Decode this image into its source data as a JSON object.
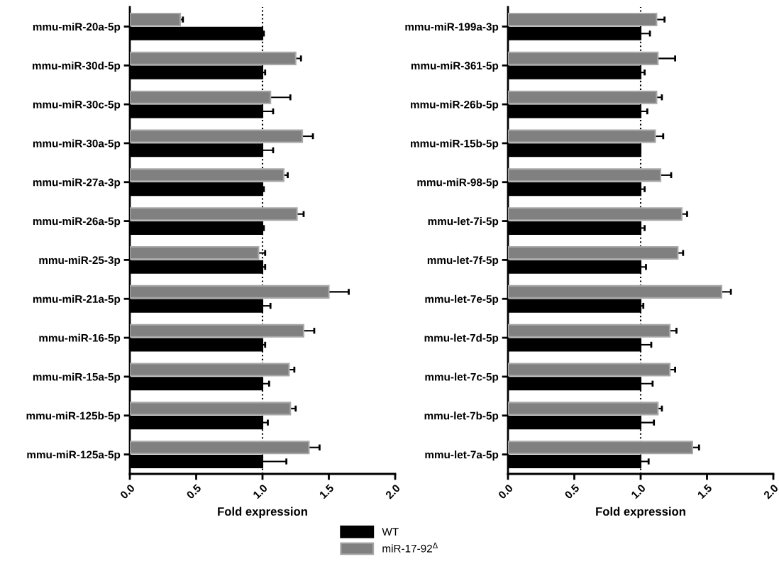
{
  "chart_data": [
    {
      "type": "bar",
      "orientation": "horizontal",
      "xlabel": "Fold expression",
      "categories": [
        "mmu-miR-20a-5p",
        "mmu-miR-30d-5p",
        "mmu-miR-30c-5p",
        "mmu-miR-30a-5p",
        "mmu-miR-27a-3p",
        "mmu-miR-26a-5p",
        "mmu-miR-25-3p",
        "mmu-miR-21a-5p",
        "mmu-miR-16-5p",
        "mmu-miR-15a-5p",
        "mmu-miR-125b-5p",
        "mmu-miR-125a-5p"
      ],
      "series": [
        {
          "name": "WT",
          "color": "#000000",
          "values": [
            1.0,
            1.0,
            1.0,
            1.0,
            1.0,
            1.0,
            1.0,
            1.0,
            1.0,
            1.0,
            1.0,
            1.0
          ],
          "errors": [
            0.01,
            0.02,
            0.08,
            0.08,
            0.01,
            0.01,
            0.02,
            0.06,
            0.02,
            0.05,
            0.04,
            0.18
          ]
        },
        {
          "name": "miR-17-92$^{Δ}$",
          "color": "#808080",
          "values": [
            0.38,
            1.25,
            1.06,
            1.3,
            1.16,
            1.26,
            0.97,
            1.5,
            1.31,
            1.2,
            1.21,
            1.35
          ],
          "errors": [
            0.02,
            0.04,
            0.15,
            0.08,
            0.03,
            0.05,
            0.05,
            0.15,
            0.08,
            0.04,
            0.04,
            0.08
          ]
        }
      ],
      "xlim": [
        0,
        2.0
      ],
      "xticks": [
        {
          "value": 0,
          "label": "0.0"
        },
        {
          "value": 0.5,
          "label": "0.5"
        },
        {
          "value": 1,
          "label": "1.0"
        },
        {
          "value": 1.5,
          "label": "1.5"
        },
        {
          "value": 2,
          "label": "2.0"
        }
      ],
      "ref_lines": [
        {
          "axis": "x",
          "value": 1.0,
          "line_style": "dotted",
          "color": "#000000"
        }
      ],
      "grid": false,
      "legend": "bottom"
    },
    {
      "type": "bar",
      "orientation": "horizontal",
      "xlabel": "Fold expression",
      "categories": [
        "mmu-miR-199a-3p",
        "mmu-miR-361-5p",
        "mmu-miR-26b-5p",
        "mmu-miR-15b-5p",
        "mmu-miR-98-5p",
        "mmu-let-7i-5p",
        "mmu-let-7f-5p",
        "mmu-let-7e-5p",
        "mmu-let-7d-5p",
        "mmu-let-7c-5p",
        "mmu-let-7b-5p",
        "mmu-let-7a-5p"
      ],
      "series": [
        {
          "color": "#000000",
          "values": [
            1.0,
            1.0,
            1.0,
            1.0,
            1.0,
            1.0,
            1.0,
            1.0,
            1.0,
            1.0,
            1.0,
            1.0
          ],
          "errors": [
            0.07,
            0.03,
            0.05,
            null,
            0.03,
            0.03,
            0.04,
            0.02,
            0.08,
            0.09,
            0.1,
            0.06
          ]
        },
        {
          "color": "#808080",
          "values": [
            1.12,
            1.13,
            1.12,
            1.11,
            1.15,
            1.31,
            1.28,
            1.61,
            1.22,
            1.22,
            1.13,
            1.39
          ],
          "errors": [
            0.06,
            0.13,
            0.04,
            0.06,
            0.08,
            0.04,
            0.04,
            0.07,
            0.05,
            0.04,
            0.03,
            0.05
          ]
        }
      ],
      "xlim": [
        0,
        2.0
      ],
      "xticks": [
        {
          "value": 0,
          "label": "0.0"
        },
        {
          "value": 0.5,
          "label": "0.5"
        },
        {
          "value": 1,
          "label": "1.0"
        },
        {
          "value": 1.5,
          "label": "1.5"
        },
        {
          "value": 2,
          "label": "2.0"
        }
      ],
      "ref_lines": [
        {
          "axis": "x",
          "value": 1.0,
          "line_style": "dotted",
          "color": "#000000"
        }
      ],
      "grid": false
    }
  ]
}
